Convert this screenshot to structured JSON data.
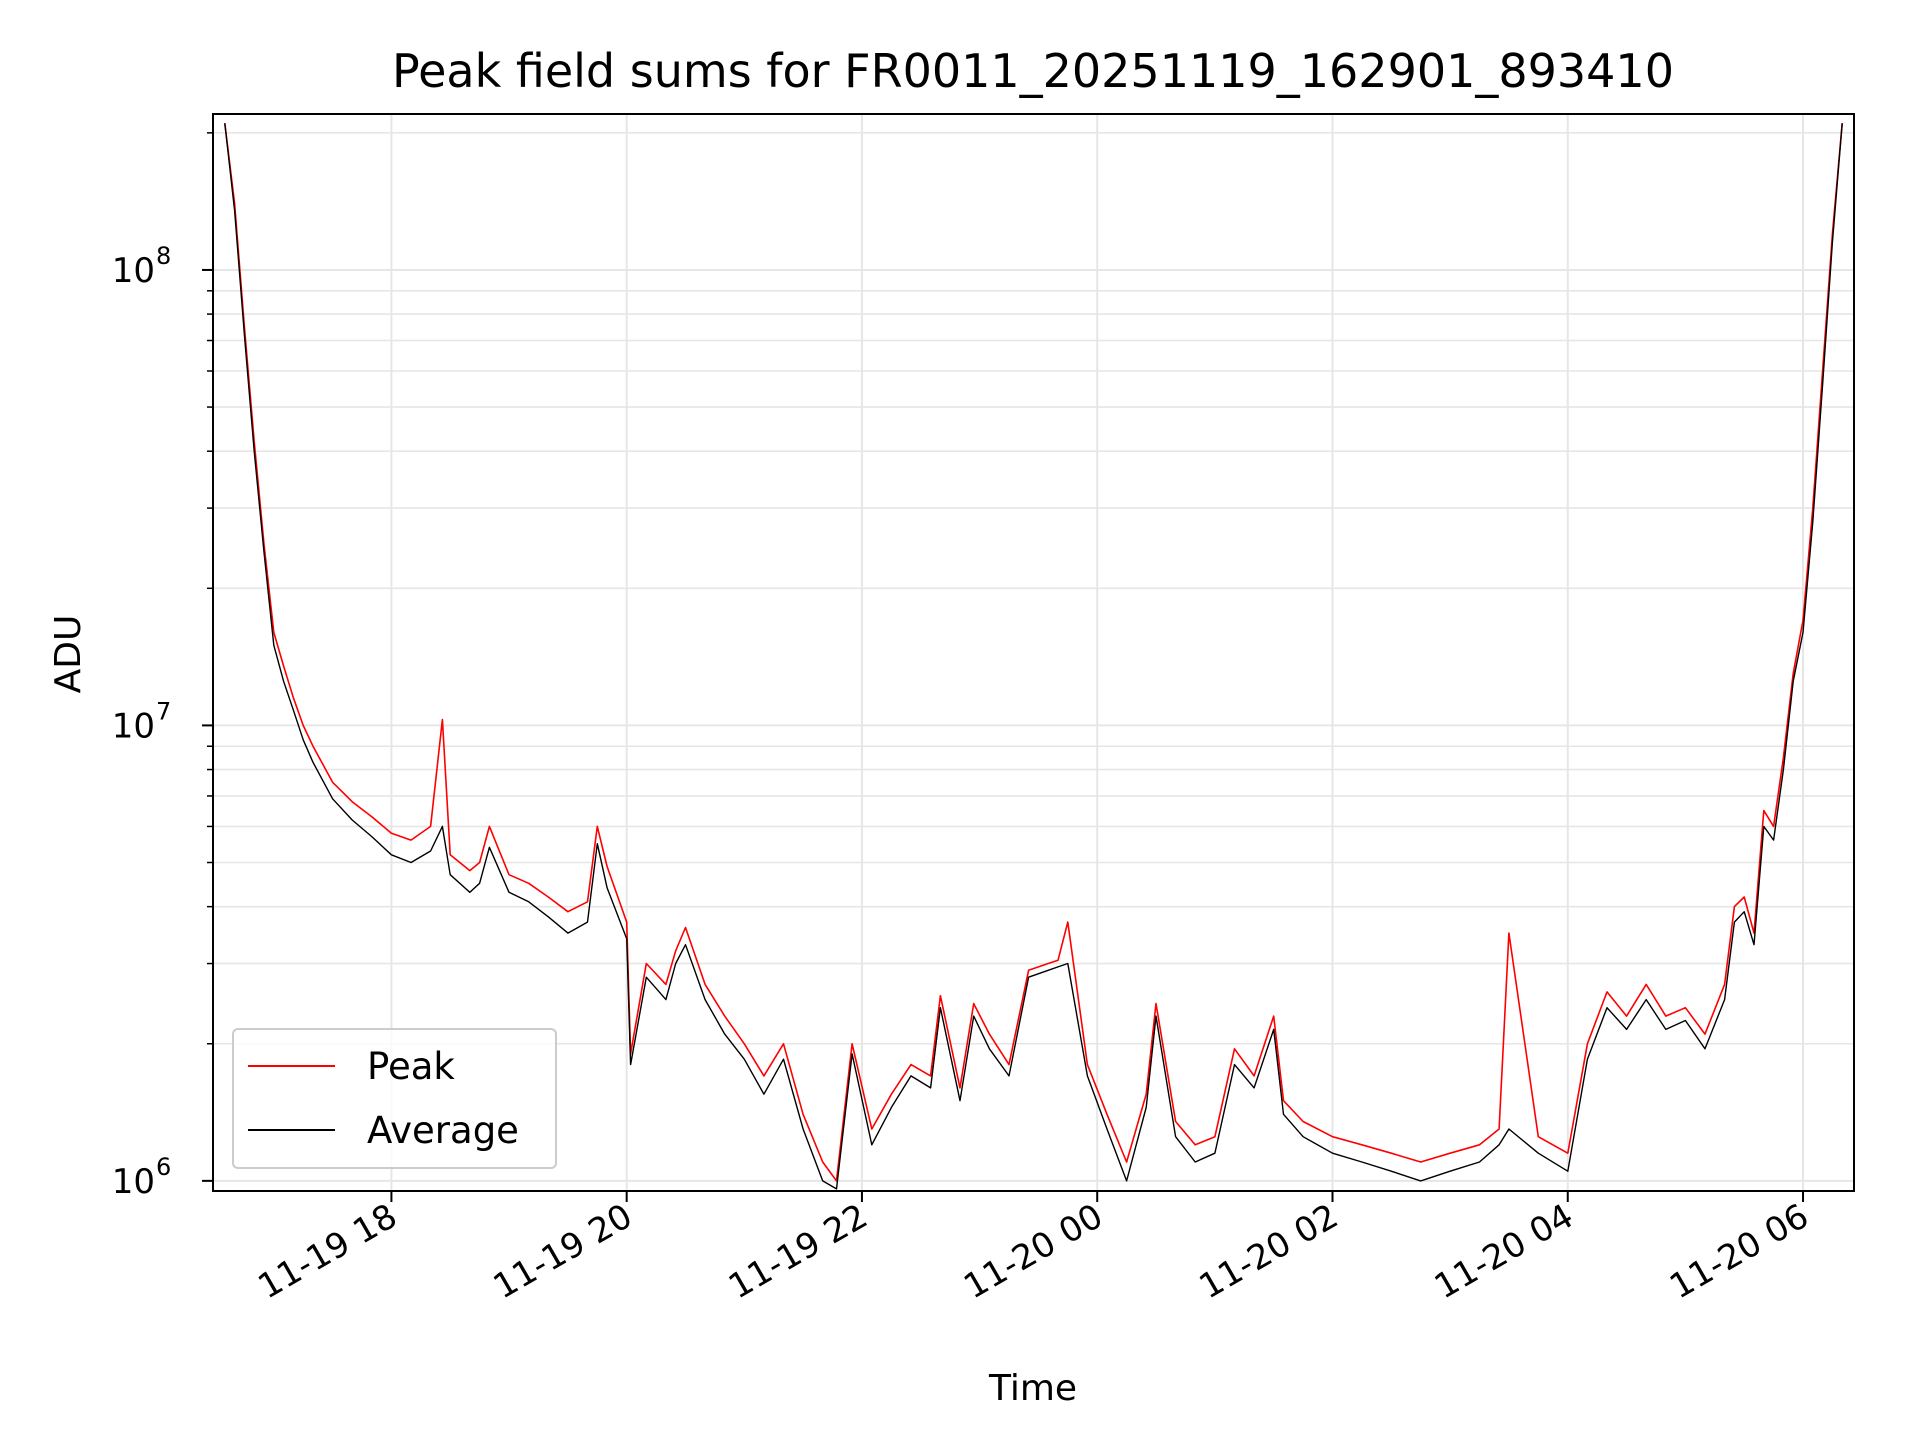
{
  "chart_data": {
    "type": "line",
    "title": "Peak field sums for FR0011_20251119_162901_893410",
    "xlabel": "Time",
    "ylabel": "ADU",
    "yscale": "log",
    "ylim": [
      950000,
      220000000
    ],
    "xlim": [
      "2025-11-19 16:29",
      "2025-11-20 06:26"
    ],
    "grid": true,
    "legend_position": "lower-left",
    "x_ticks": [
      {
        "value": "2025-11-19 18:00",
        "label": "11-19 18"
      },
      {
        "value": "2025-11-19 20:00",
        "label": "11-19 20"
      },
      {
        "value": "2025-11-19 22:00",
        "label": "11-19 22"
      },
      {
        "value": "2025-11-20 00:00",
        "label": "11-20 00"
      },
      {
        "value": "2025-11-20 02:00",
        "label": "11-20 02"
      },
      {
        "value": "2025-11-20 04:00",
        "label": "11-20 04"
      },
      {
        "value": "2025-11-20 06:00",
        "label": "11-20 06"
      }
    ],
    "y_ticks": [
      {
        "value": 1000000,
        "base": "10",
        "exp": "6"
      },
      {
        "value": 10000000,
        "base": "10",
        "exp": "7"
      },
      {
        "value": 100000000,
        "base": "10",
        "exp": "8"
      }
    ],
    "colors": {
      "peak": "#ff0000",
      "average": "#000000",
      "grid": "#e6e6e6",
      "axes": "#000000"
    },
    "series": [
      {
        "name": "Peak",
        "color": "#ff0000",
        "x": [
          "2025-11-19 16:35",
          "2025-11-19 16:40",
          "2025-11-19 16:45",
          "2025-11-19 16:50",
          "2025-11-19 16:55",
          "2025-11-19 17:00",
          "2025-11-19 17:05",
          "2025-11-19 17:10",
          "2025-11-19 17:15",
          "2025-11-19 17:20",
          "2025-11-19 17:30",
          "2025-11-19 17:40",
          "2025-11-19 17:50",
          "2025-11-19 18:00",
          "2025-11-19 18:10",
          "2025-11-19 18:20",
          "2025-11-19 18:26",
          "2025-11-19 18:30",
          "2025-11-19 18:40",
          "2025-11-19 18:45",
          "2025-11-19 18:50",
          "2025-11-19 19:00",
          "2025-11-19 19:10",
          "2025-11-19 19:20",
          "2025-11-19 19:30",
          "2025-11-19 19:40",
          "2025-11-19 19:45",
          "2025-11-19 19:50",
          "2025-11-19 20:00",
          "2025-11-19 20:02",
          "2025-11-19 20:10",
          "2025-11-19 20:20",
          "2025-11-19 20:25",
          "2025-11-19 20:30",
          "2025-11-19 20:40",
          "2025-11-19 20:50",
          "2025-11-19 21:00",
          "2025-11-19 21:10",
          "2025-11-19 21:20",
          "2025-11-19 21:30",
          "2025-11-19 21:40",
          "2025-11-19 21:47",
          "2025-11-19 21:55",
          "2025-11-19 22:05",
          "2025-11-19 22:15",
          "2025-11-19 22:25",
          "2025-11-19 22:35",
          "2025-11-19 22:40",
          "2025-11-19 22:50",
          "2025-11-19 22:57",
          "2025-11-19 23:05",
          "2025-11-19 23:15",
          "2025-11-19 23:25",
          "2025-11-19 23:35",
          "2025-11-19 23:40",
          "2025-11-19 23:45",
          "2025-11-19 23:55",
          "2025-11-20 00:05",
          "2025-11-20 00:15",
          "2025-11-20 00:25",
          "2025-11-20 00:30",
          "2025-11-20 00:40",
          "2025-11-20 00:50",
          "2025-11-20 01:00",
          "2025-11-20 01:10",
          "2025-11-20 01:20",
          "2025-11-20 01:30",
          "2025-11-20 01:35",
          "2025-11-20 01:45",
          "2025-11-20 02:00",
          "2025-11-20 02:15",
          "2025-11-20 02:30",
          "2025-11-20 02:45",
          "2025-11-20 03:00",
          "2025-11-20 03:15",
          "2025-11-20 03:25",
          "2025-11-20 03:30",
          "2025-11-20 03:45",
          "2025-11-20 04:00",
          "2025-11-20 04:10",
          "2025-11-20 04:20",
          "2025-11-20 04:30",
          "2025-11-20 04:40",
          "2025-11-20 04:50",
          "2025-11-20 05:00",
          "2025-11-20 05:10",
          "2025-11-20 05:20",
          "2025-11-20 05:25",
          "2025-11-20 05:30",
          "2025-11-20 05:35",
          "2025-11-20 05:40",
          "2025-11-20 05:45",
          "2025-11-20 05:50",
          "2025-11-20 05:55",
          "2025-11-20 06:00",
          "2025-11-20 06:05",
          "2025-11-20 06:10",
          "2025-11-20 06:15",
          "2025-11-20 06:20"
        ],
        "y": [
          210000000,
          140000000,
          75000000,
          42000000,
          25000000,
          16000000,
          13500000,
          11500000,
          10000000,
          9000000,
          7500000,
          6800000,
          6300000,
          5800000,
          5600000,
          6000000,
          10300000,
          5200000,
          4800000,
          5000000,
          6000000,
          4700000,
          4500000,
          4200000,
          3900000,
          4100000,
          6000000,
          4900000,
          3700000,
          1900000,
          3000000,
          2700000,
          3200000,
          3600000,
          2700000,
          2300000,
          2000000,
          1700000,
          2000000,
          1400000,
          1100000,
          1000000,
          2000000,
          1300000,
          1550000,
          1800000,
          1700000,
          2550000,
          1600000,
          2450000,
          2100000,
          1800000,
          2900000,
          3000000,
          3050000,
          3700000,
          1800000,
          1400000,
          1100000,
          1550000,
          2450000,
          1350000,
          1200000,
          1250000,
          1950000,
          1700000,
          2300000,
          1500000,
          1350000,
          1250000,
          1200000,
          1150000,
          1100000,
          1150000,
          1200000,
          1300000,
          3500000,
          1250000,
          1150000,
          2000000,
          2600000,
          2300000,
          2700000,
          2300000,
          2400000,
          2100000,
          2700000,
          4000000,
          4200000,
          3500000,
          6500000,
          6000000,
          8500000,
          13000000,
          17000000,
          30000000,
          60000000,
          120000000,
          210000000
        ]
      },
      {
        "name": "Average",
        "color": "#000000",
        "x": [
          "2025-11-19 16:35",
          "2025-11-19 16:40",
          "2025-11-19 16:45",
          "2025-11-19 16:50",
          "2025-11-19 16:55",
          "2025-11-19 17:00",
          "2025-11-19 17:05",
          "2025-11-19 17:10",
          "2025-11-19 17:15",
          "2025-11-19 17:20",
          "2025-11-19 17:30",
          "2025-11-19 17:40",
          "2025-11-19 17:50",
          "2025-11-19 18:00",
          "2025-11-19 18:10",
          "2025-11-19 18:20",
          "2025-11-19 18:26",
          "2025-11-19 18:30",
          "2025-11-19 18:40",
          "2025-11-19 18:45",
          "2025-11-19 18:50",
          "2025-11-19 19:00",
          "2025-11-19 19:10",
          "2025-11-19 19:20",
          "2025-11-19 19:30",
          "2025-11-19 19:40",
          "2025-11-19 19:45",
          "2025-11-19 19:50",
          "2025-11-19 20:00",
          "2025-11-19 20:02",
          "2025-11-19 20:10",
          "2025-11-19 20:20",
          "2025-11-19 20:25",
          "2025-11-19 20:30",
          "2025-11-19 20:40",
          "2025-11-19 20:50",
          "2025-11-19 21:00",
          "2025-11-19 21:10",
          "2025-11-19 21:20",
          "2025-11-19 21:30",
          "2025-11-19 21:40",
          "2025-11-19 21:47",
          "2025-11-19 21:55",
          "2025-11-19 22:05",
          "2025-11-19 22:15",
          "2025-11-19 22:25",
          "2025-11-19 22:35",
          "2025-11-19 22:40",
          "2025-11-19 22:50",
          "2025-11-19 22:57",
          "2025-11-19 23:05",
          "2025-11-19 23:15",
          "2025-11-19 23:25",
          "2025-11-19 23:35",
          "2025-11-19 23:40",
          "2025-11-19 23:45",
          "2025-11-19 23:55",
          "2025-11-20 00:05",
          "2025-11-20 00:15",
          "2025-11-20 00:25",
          "2025-11-20 00:30",
          "2025-11-20 00:40",
          "2025-11-20 00:50",
          "2025-11-20 01:00",
          "2025-11-20 01:10",
          "2025-11-20 01:20",
          "2025-11-20 01:30",
          "2025-11-20 01:35",
          "2025-11-20 01:45",
          "2025-11-20 02:00",
          "2025-11-20 02:15",
          "2025-11-20 02:30",
          "2025-11-20 02:45",
          "2025-11-20 03:00",
          "2025-11-20 03:15",
          "2025-11-20 03:25",
          "2025-11-20 03:30",
          "2025-11-20 03:45",
          "2025-11-20 04:00",
          "2025-11-20 04:10",
          "2025-11-20 04:20",
          "2025-11-20 04:30",
          "2025-11-20 04:40",
          "2025-11-20 04:50",
          "2025-11-20 05:00",
          "2025-11-20 05:10",
          "2025-11-20 05:20",
          "2025-11-20 05:25",
          "2025-11-20 05:30",
          "2025-11-20 05:35",
          "2025-11-20 05:40",
          "2025-11-20 05:45",
          "2025-11-20 05:50",
          "2025-11-20 05:55",
          "2025-11-20 06:00",
          "2025-11-20 06:05",
          "2025-11-20 06:10",
          "2025-11-20 06:15",
          "2025-11-20 06:20"
        ],
        "y": [
          210000000,
          135000000,
          72000000,
          40000000,
          24000000,
          15000000,
          12500000,
          10800000,
          9300000,
          8300000,
          6900000,
          6200000,
          5700000,
          5200000,
          5000000,
          5300000,
          6000000,
          4700000,
          4300000,
          4500000,
          5400000,
          4300000,
          4100000,
          3800000,
          3500000,
          3700000,
          5500000,
          4400000,
          3400000,
          1800000,
          2800000,
          2500000,
          3000000,
          3300000,
          2500000,
          2100000,
          1850000,
          1550000,
          1850000,
          1300000,
          1000000,
          960000,
          1900000,
          1200000,
          1450000,
          1700000,
          1600000,
          2400000,
          1500000,
          2300000,
          1950000,
          1700000,
          2800000,
          2900000,
          2950000,
          3000000,
          1700000,
          1300000,
          1000000,
          1450000,
          2300000,
          1250000,
          1100000,
          1150000,
          1800000,
          1600000,
          2150000,
          1400000,
          1250000,
          1150000,
          1100000,
          1050000,
          1000000,
          1050000,
          1100000,
          1200000,
          1300000,
          1150000,
          1050000,
          1850000,
          2400000,
          2150000,
          2500000,
          2150000,
          2250000,
          1950000,
          2500000,
          3700000,
          3900000,
          3300000,
          6000000,
          5600000,
          8000000,
          12500000,
          16000000,
          28000000,
          56000000,
          115000000,
          210000000
        ]
      }
    ]
  }
}
